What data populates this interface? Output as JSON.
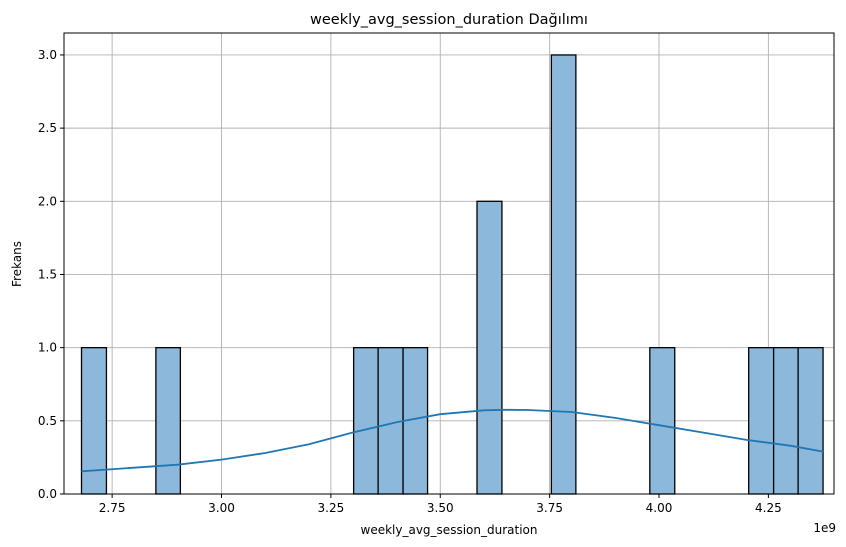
{
  "chart_data": {
    "type": "bar",
    "subtype": "histogram-with-kde",
    "title": "weekly_avg_session_duration Dağılımı",
    "xlabel": "weekly_avg_session_duration",
    "ylabel": "Frekans",
    "x_offset_label": "1e9",
    "xlim": [
      2.64,
      4.4
    ],
    "ylim": [
      0,
      3.15
    ],
    "grid": true,
    "xticks": [
      2.75,
      3.0,
      3.25,
      3.5,
      3.75,
      4.0,
      4.25
    ],
    "xtick_labels": [
      "2.75",
      "3.00",
      "3.25",
      "3.50",
      "3.75",
      "4.00",
      "4.25"
    ],
    "yticks": [
      0,
      0.5,
      1.0,
      1.5,
      2.0,
      2.5,
      3.0
    ],
    "ytick_labels": [
      "0.0",
      "0.5",
      "1.0",
      "1.5",
      "2.0",
      "2.5",
      "3.0"
    ],
    "bar_color": "#8cb8db",
    "kde_color": "#1f77b4",
    "bins": [
      {
        "x0": 2.68,
        "x1": 2.737,
        "count": 1
      },
      {
        "x0": 2.85,
        "x1": 2.906,
        "count": 1
      },
      {
        "x0": 3.302,
        "x1": 3.358,
        "count": 1
      },
      {
        "x0": 3.358,
        "x1": 3.415,
        "count": 1
      },
      {
        "x0": 3.415,
        "x1": 3.471,
        "count": 1
      },
      {
        "x0": 3.584,
        "x1": 3.641,
        "count": 2
      },
      {
        "x0": 3.754,
        "x1": 3.81,
        "count": 3
      },
      {
        "x0": 3.979,
        "x1": 4.036,
        "count": 1
      },
      {
        "x0": 4.205,
        "x1": 4.262,
        "count": 1
      },
      {
        "x0": 4.262,
        "x1": 4.318,
        "count": 1
      },
      {
        "x0": 4.318,
        "x1": 4.375,
        "count": 1
      }
    ],
    "kde": {
      "x": [
        2.68,
        2.8,
        2.9,
        3.0,
        3.1,
        3.2,
        3.3,
        3.4,
        3.5,
        3.6,
        3.65,
        3.7,
        3.8,
        3.9,
        4.0,
        4.1,
        4.2,
        4.3,
        4.375
      ],
      "y": [
        0.155,
        0.18,
        0.2,
        0.235,
        0.28,
        0.34,
        0.42,
        0.49,
        0.545,
        0.572,
        0.575,
        0.574,
        0.56,
        0.52,
        0.47,
        0.42,
        0.37,
        0.33,
        0.29
      ]
    }
  }
}
